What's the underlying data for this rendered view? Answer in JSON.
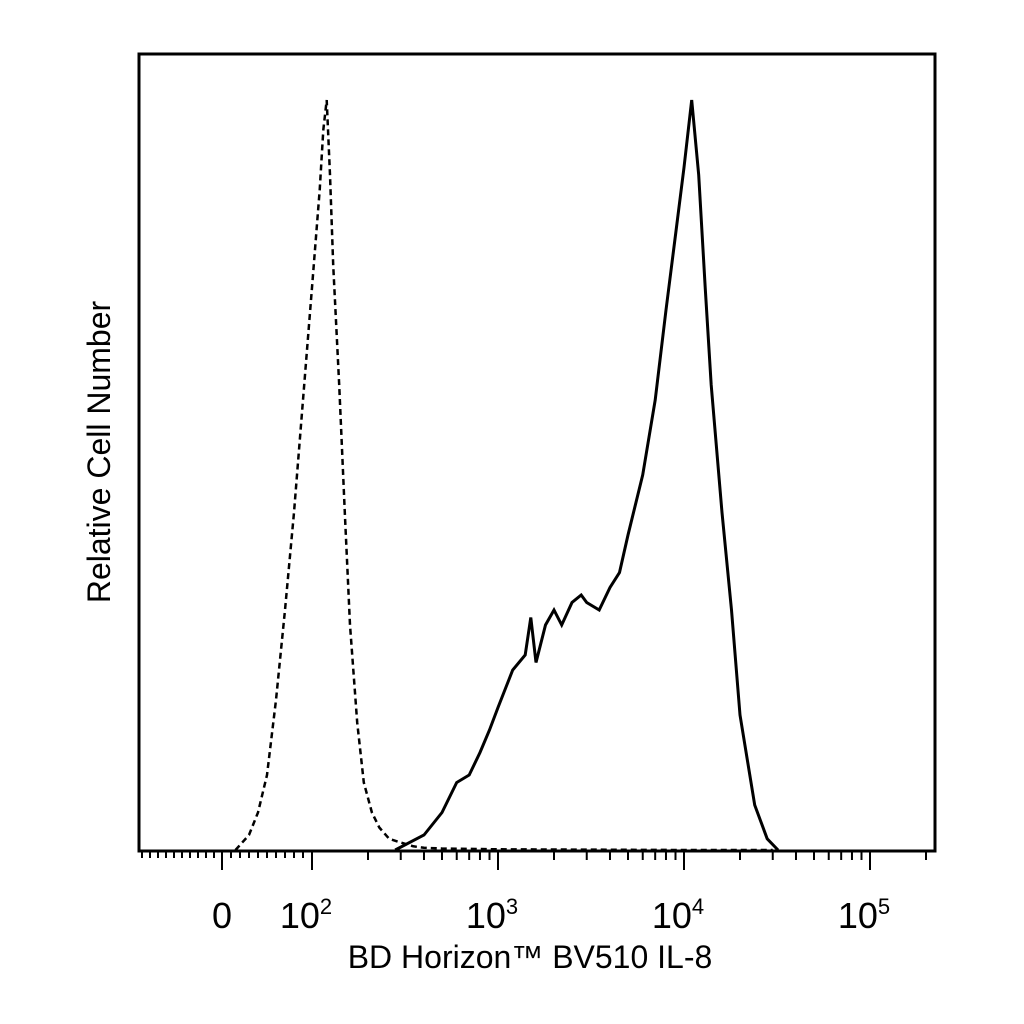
{
  "chart_data": {
    "type": "line",
    "title": "",
    "xlabel": "BD Horizon™ BV510 IL-8",
    "ylabel": "Relative Cell Number",
    "x_scale": "biexponential (log above 10^2, linear around 0)",
    "xlim": [
      -200,
      250000
    ],
    "ylim": [
      0,
      1
    ],
    "grid": false,
    "legend": "none",
    "x_tick_labels": [
      {
        "value": 0,
        "base": "0",
        "exp": ""
      },
      {
        "value": 100,
        "base": "10",
        "exp": "2"
      },
      {
        "value": 1000,
        "base": "10",
        "exp": "3"
      },
      {
        "value": 10000,
        "base": "10",
        "exp": "4"
      },
      {
        "value": 100000,
        "base": "10",
        "exp": "5"
      }
    ],
    "series": [
      {
        "style": "dashed",
        "x": [
          15,
          30,
          40,
          50,
          60,
          70,
          80,
          90,
          100,
          110,
          115,
          120,
          125,
          130,
          140,
          150,
          160,
          175,
          190,
          210,
          230,
          260,
          300,
          350,
          400,
          500,
          1000,
          10000,
          30000
        ],
        "y": [
          0.0,
          0.02,
          0.05,
          0.1,
          0.2,
          0.32,
          0.45,
          0.6,
          0.75,
          0.88,
          0.96,
          1.0,
          0.9,
          0.78,
          0.62,
          0.45,
          0.3,
          0.17,
          0.09,
          0.05,
          0.03,
          0.015,
          0.01,
          0.005,
          0.003,
          0.002,
          0.001,
          0.0,
          0.0
        ]
      },
      {
        "style": "solid",
        "x": [
          280,
          400,
          500,
          600,
          700,
          800,
          900,
          1000,
          1200,
          1400,
          1500,
          1600,
          1800,
          2000,
          2200,
          2500,
          2800,
          3000,
          3500,
          4000,
          4500,
          5000,
          6000,
          7000,
          8000,
          9000,
          10000,
          11000,
          12000,
          13000,
          14000,
          16000,
          18000,
          20000,
          24000,
          28000,
          32000
        ],
        "y": [
          0.0,
          0.02,
          0.05,
          0.09,
          0.1,
          0.13,
          0.16,
          0.19,
          0.24,
          0.26,
          0.31,
          0.25,
          0.3,
          0.32,
          0.3,
          0.33,
          0.34,
          0.33,
          0.32,
          0.35,
          0.37,
          0.42,
          0.5,
          0.6,
          0.72,
          0.82,
          0.91,
          1.0,
          0.9,
          0.75,
          0.62,
          0.45,
          0.32,
          0.18,
          0.06,
          0.015,
          0.0
        ]
      }
    ]
  }
}
